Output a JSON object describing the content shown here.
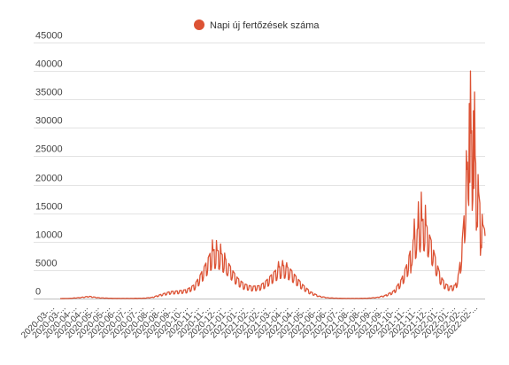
{
  "chart_data": {
    "type": "line",
    "title": "",
    "xlabel": "",
    "ylabel": "",
    "legend": {
      "placement": "top-center"
    },
    "grid": true,
    "ylim": [
      0,
      45000
    ],
    "y_ticks": [
      0,
      5000,
      10000,
      15000,
      20000,
      25000,
      30000,
      35000,
      40000,
      45000
    ],
    "x_tick_labels": [
      "2020-03-...",
      "2020-03-...",
      "2020-04-...",
      "2020-04-...",
      "2020-05-...",
      "2020-05-...",
      "2020-06-...",
      "2020-07-...",
      "2020-07-...",
      "2020-08-...",
      "2020-08-...",
      "2020-09-...",
      "2020-10-...",
      "2020-11-...",
      "2020-11-...",
      "2020-12-...",
      "2021-01-...",
      "2021-01-...",
      "2021-02-...",
      "2021-02-...",
      "2021-03-...",
      "2021-04-...",
      "2021-04-...",
      "2021-05-...",
      "2021-06-...",
      "2021-06-...",
      "2021-07-...",
      "2021-08-...",
      "2021-08-...",
      "2021-09-...",
      "2021-09-...",
      "2021-10-...",
      "2021-11-...",
      "2021-11-...",
      "2021-12-...",
      "2022-01-...",
      "2022-01-...",
      "2022-02-...",
      "2022-02-..."
    ],
    "series": [
      {
        "name": "Napi új fertőzések száma",
        "color": "#dc5234",
        "x_start": "2020-03-04",
        "x_end": "2022-02-28",
        "anchors": [
          [
            "2020-03-04",
            0
          ],
          [
            "2020-03-20",
            30
          ],
          [
            "2020-04-08",
            180
          ],
          [
            "2020-04-22",
            360
          ],
          [
            "2020-05-10",
            120
          ],
          [
            "2020-06-01",
            40
          ],
          [
            "2020-07-01",
            30
          ],
          [
            "2020-07-25",
            60
          ],
          [
            "2020-08-08",
            200
          ],
          [
            "2020-08-25",
            700
          ],
          [
            "2020-09-08",
            1100
          ],
          [
            "2020-09-22",
            1200
          ],
          [
            "2020-10-06",
            1400
          ],
          [
            "2020-10-20",
            2200
          ],
          [
            "2020-10-30",
            3800
          ],
          [
            "2020-11-08",
            5500
          ],
          [
            "2020-11-15",
            7000
          ],
          [
            "2020-11-22",
            7600
          ],
          [
            "2020-11-30",
            7400
          ],
          [
            "2020-12-08",
            6600
          ],
          [
            "2020-12-16",
            5600
          ],
          [
            "2020-12-24",
            4300
          ],
          [
            "2021-01-01",
            3200
          ],
          [
            "2021-01-12",
            2300
          ],
          [
            "2021-01-25",
            1900
          ],
          [
            "2021-02-07",
            2000
          ],
          [
            "2021-02-17",
            2600
          ],
          [
            "2021-02-27",
            3600
          ],
          [
            "2021-03-08",
            4500
          ],
          [
            "2021-03-16",
            5100
          ],
          [
            "2021-03-24",
            5100
          ],
          [
            "2021-04-02",
            4500
          ],
          [
            "2021-04-12",
            3300
          ],
          [
            "2021-04-22",
            2200
          ],
          [
            "2021-05-05",
            1100
          ],
          [
            "2021-05-20",
            400
          ],
          [
            "2021-06-05",
            120
          ],
          [
            "2021-06-25",
            40
          ],
          [
            "2021-07-25",
            30
          ],
          [
            "2021-08-12",
            60
          ],
          [
            "2021-08-28",
            200
          ],
          [
            "2021-09-10",
            500
          ],
          [
            "2021-09-25",
            1200
          ],
          [
            "2021-10-08",
            3000
          ],
          [
            "2021-10-18",
            5500
          ],
          [
            "2021-10-26",
            8500
          ],
          [
            "2021-11-02",
            10300
          ],
          [
            "2021-11-09",
            11700
          ],
          [
            "2021-11-14",
            12300
          ],
          [
            "2021-11-20",
            11300
          ],
          [
            "2021-11-28",
            9000
          ],
          [
            "2021-12-06",
            6000
          ],
          [
            "2021-12-14",
            3500
          ],
          [
            "2021-12-22",
            2300
          ],
          [
            "2021-12-30",
            1900
          ],
          [
            "2022-01-08",
            2100
          ],
          [
            "2022-01-14",
            4000
          ],
          [
            "2022-01-19",
            8000
          ],
          [
            "2022-01-24",
            14000
          ],
          [
            "2022-01-28",
            20000
          ],
          [
            "2022-02-01",
            24500
          ],
          [
            "2022-02-05",
            26000
          ],
          [
            "2022-02-10",
            23000
          ],
          [
            "2022-02-15",
            18000
          ],
          [
            "2022-02-20",
            14000
          ],
          [
            "2022-02-24",
            11500
          ],
          [
            "2022-02-28",
            10500
          ]
        ],
        "weekly_amplitude": 0.3,
        "peaks": [
          [
            "2020-11-19",
            10300
          ],
          [
            "2020-11-26",
            10200
          ],
          [
            "2020-12-03",
            9600
          ],
          [
            "2020-12-10",
            8000
          ],
          [
            "2021-03-12",
            6500
          ],
          [
            "2021-03-19",
            6700
          ],
          [
            "2021-03-26",
            6300
          ],
          [
            "2021-10-30",
            14000
          ],
          [
            "2021-11-06",
            17000
          ],
          [
            "2021-11-11",
            18700
          ],
          [
            "2021-11-18",
            16400
          ],
          [
            "2022-01-27",
            26000
          ],
          [
            "2022-02-01",
            34300
          ],
          [
            "2022-02-03",
            40000
          ],
          [
            "2022-02-08",
            33000
          ],
          [
            "2022-02-10",
            36300
          ],
          [
            "2022-02-16",
            21800
          ],
          [
            "2022-02-23",
            14800
          ],
          [
            "2022-02-28",
            11000
          ]
        ],
        "troughs": [
          [
            "2020-12-13",
            4500
          ],
          [
            "2021-10-24",
            4500
          ],
          [
            "2021-11-08",
            8700
          ],
          [
            "2022-01-30",
            17500
          ],
          [
            "2022-02-06",
            15500
          ],
          [
            "2022-02-13",
            12000
          ],
          [
            "2022-02-20",
            7600
          ]
        ]
      }
    ]
  }
}
